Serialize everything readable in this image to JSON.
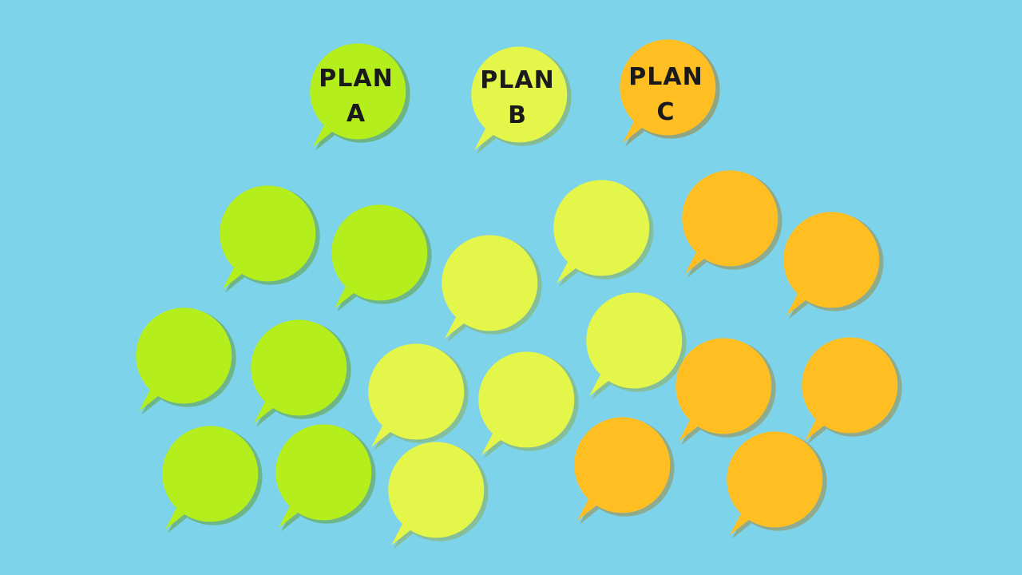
{
  "colors": {
    "background": "#7dd3e9",
    "green": "#b4ee1c",
    "green_shadow": "#5e9a2b",
    "yellow": "#e4f64a",
    "yellow_shadow": "#8fa63a",
    "orange": "#ffbe22",
    "orange_shadow": "#a07a22"
  },
  "labels": {
    "plan_a": {
      "line1": "PLAN",
      "line2": "A"
    },
    "plan_b": {
      "line1": "PLAN",
      "line2": "B"
    },
    "plan_c": {
      "line1": "PLAN",
      "line2": "C"
    }
  }
}
